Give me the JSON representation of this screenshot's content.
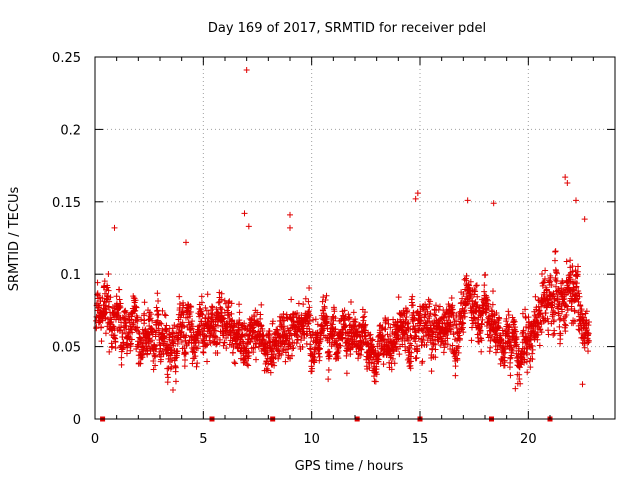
{
  "colors": {
    "series": "#e00000",
    "grid": "#a0a0a0",
    "frame": "#000000"
  },
  "chart_data": {
    "type": "scatter",
    "title": "Day 169 of 2017, SRMTID for receiver pdel",
    "xlabel": "GPS time / hours",
    "ylabel": "SRMTID / TECUs",
    "xlim": [
      0,
      24
    ],
    "ylim": [
      0,
      0.25
    ],
    "grid": true,
    "xticks": [
      0,
      5,
      10,
      15,
      20
    ],
    "xtick_labels": [
      "0",
      "5",
      "10",
      "15",
      "20"
    ],
    "yticks": [
      0,
      0.05,
      0.1,
      0.15,
      0.2,
      0.25
    ],
    "ytick_labels": [
      "0",
      "0.05",
      "0.1",
      "0.15",
      "0.2",
      "0.25"
    ],
    "marker": "+",
    "marker_color": "#e00000",
    "highlighted_points": [
      {
        "x": 7.0,
        "y": 0.241
      },
      {
        "x": 6.9,
        "y": 0.142
      },
      {
        "x": 7.1,
        "y": 0.133
      },
      {
        "x": 9.0,
        "y": 0.141
      },
      {
        "x": 9.0,
        "y": 0.132
      },
      {
        "x": 14.9,
        "y": 0.156
      },
      {
        "x": 14.8,
        "y": 0.152
      },
      {
        "x": 17.2,
        "y": 0.151
      },
      {
        "x": 18.4,
        "y": 0.149
      },
      {
        "x": 21.7,
        "y": 0.167
      },
      {
        "x": 21.8,
        "y": 0.163
      },
      {
        "x": 22.2,
        "y": 0.151
      },
      {
        "x": 22.6,
        "y": 0.138
      },
      {
        "x": 3.6,
        "y": 0.02
      },
      {
        "x": 19.4,
        "y": 0.021
      },
      {
        "x": 22.5,
        "y": 0.024
      },
      {
        "x": 4.2,
        "y": 0.122
      },
      {
        "x": 0.9,
        "y": 0.132
      }
    ],
    "envelope": {
      "description": "approximate central tendency and spread of the ~3000 plus-marker samples",
      "hours": [
        0,
        1,
        2,
        3,
        4,
        5,
        6,
        7,
        8,
        9,
        10,
        11,
        12,
        13,
        14,
        15,
        16,
        17,
        18,
        19,
        20,
        21,
        22,
        22.8
      ],
      "center": [
        0.075,
        0.07,
        0.058,
        0.056,
        0.055,
        0.062,
        0.072,
        0.052,
        0.05,
        0.065,
        0.068,
        0.057,
        0.06,
        0.052,
        0.058,
        0.068,
        0.065,
        0.082,
        0.075,
        0.05,
        0.06,
        0.085,
        0.09,
        0.062
      ],
      "spread": [
        0.018,
        0.022,
        0.018,
        0.02,
        0.022,
        0.02,
        0.02,
        0.02,
        0.017,
        0.022,
        0.018,
        0.018,
        0.02,
        0.016,
        0.02,
        0.025,
        0.02,
        0.024,
        0.02,
        0.016,
        0.02,
        0.022,
        0.026,
        0.02
      ],
      "n_points": 3000,
      "x_start": 0.05,
      "x_end": 22.8
    },
    "zero_markers_x": [
      0.35,
      5.4,
      8.2,
      12.1,
      15.0,
      18.3,
      21.0
    ]
  }
}
